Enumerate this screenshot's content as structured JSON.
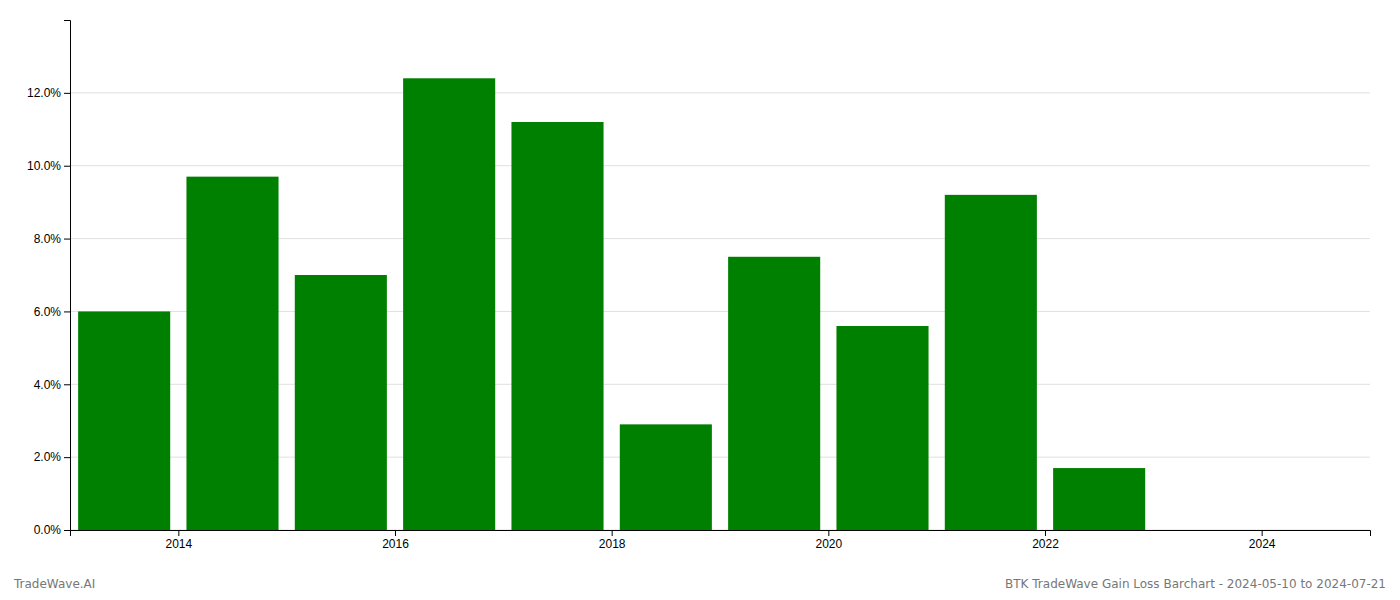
{
  "chart_data": {
    "type": "bar",
    "x": [
      2013.5,
      2014.5,
      2015.5,
      2016.5,
      2017.5,
      2018.5,
      2019.5,
      2020.5,
      2021.5,
      2022.5,
      2023.5
    ],
    "values": [
      0.06,
      0.097,
      0.07,
      0.124,
      0.112,
      0.029,
      0.075,
      0.056,
      0.092,
      0.017,
      0.0
    ],
    "color": "#008000",
    "xlim": [
      2013.0,
      2025.0
    ],
    "xticks": [
      2014,
      2016,
      2018,
      2020,
      2022,
      2024
    ],
    "ylim": [
      0,
      0.14
    ],
    "yticks": [
      {
        "value": 0.0,
        "label": "0.0%"
      },
      {
        "value": 0.02,
        "label": "2.0%"
      },
      {
        "value": 0.04,
        "label": "4.0%"
      },
      {
        "value": 0.06,
        "label": "6.0%"
      },
      {
        "value": 0.08,
        "label": "8.0%"
      },
      {
        "value": 0.1,
        "label": "10.0%"
      },
      {
        "value": 0.12,
        "label": "12.0%"
      }
    ],
    "grid": true,
    "annotations": [
      "TradeWave.AI",
      "BTK TradeWave Gain Loss Barchart - 2024-05-10 to 2024-07-21"
    ]
  }
}
